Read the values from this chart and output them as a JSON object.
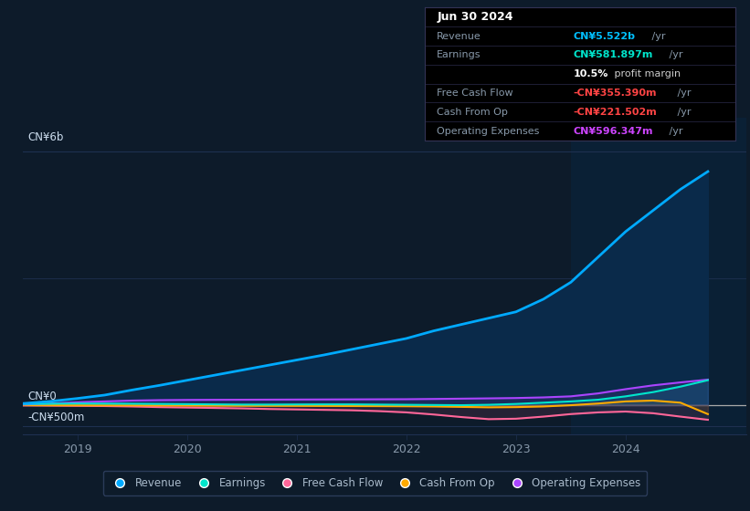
{
  "bg_color": "#0d1b2a",
  "plot_bg_color": "#0d1b2a",
  "title": "Jun 30 2024",
  "yticks": [
    "CN¥6b",
    "CN¥0",
    "-CN¥500m"
  ],
  "ytick_values": [
    6000,
    0,
    -500
  ],
  "xticks": [
    "2019",
    "2020",
    "2021",
    "2022",
    "2023",
    "2024"
  ],
  "ylim": [
    -700,
    6800
  ],
  "xlim": [
    2018.5,
    2025.1
  ],
  "highlight_x_start": 2023.5,
  "highlight_x_end": 2025.1,
  "series": {
    "Revenue": {
      "color": "#00aaff",
      "fill_color": "#0a2a4a",
      "x": [
        2018.5,
        2018.75,
        2019.0,
        2019.25,
        2019.5,
        2019.75,
        2020.0,
        2020.25,
        2020.5,
        2020.75,
        2021.0,
        2021.25,
        2021.5,
        2021.75,
        2022.0,
        2022.25,
        2022.5,
        2022.75,
        2023.0,
        2023.25,
        2023.5,
        2023.75,
        2024.0,
        2024.25,
        2024.5,
        2024.75
      ],
      "y": [
        30,
        80,
        150,
        230,
        350,
        460,
        580,
        700,
        820,
        940,
        1060,
        1180,
        1310,
        1440,
        1570,
        1750,
        1900,
        2050,
        2200,
        2500,
        2900,
        3500,
        4100,
        4600,
        5100,
        5522
      ]
    },
    "Earnings": {
      "color": "#00e5cc",
      "x": [
        2018.5,
        2018.75,
        2019.0,
        2019.25,
        2019.5,
        2019.75,
        2020.0,
        2020.25,
        2020.5,
        2020.75,
        2021.0,
        2021.25,
        2021.5,
        2021.75,
        2022.0,
        2022.25,
        2022.5,
        2022.75,
        2023.0,
        2023.25,
        2023.5,
        2023.75,
        2024.0,
        2024.25,
        2024.5,
        2024.75
      ],
      "y": [
        20,
        25,
        30,
        28,
        25,
        20,
        15,
        10,
        5,
        5,
        8,
        10,
        10,
        5,
        0,
        -5,
        -10,
        0,
        20,
        50,
        80,
        120,
        200,
        300,
        430,
        582
      ]
    },
    "Free Cash Flow": {
      "color": "#ff6699",
      "x": [
        2018.5,
        2018.75,
        2019.0,
        2019.25,
        2019.5,
        2019.75,
        2020.0,
        2020.25,
        2020.5,
        2020.75,
        2021.0,
        2021.25,
        2021.5,
        2021.75,
        2022.0,
        2022.25,
        2022.5,
        2022.75,
        2023.0,
        2023.25,
        2023.5,
        2023.75,
        2024.0,
        2024.25,
        2024.5,
        2024.75
      ],
      "y": [
        -15,
        -20,
        -25,
        -30,
        -40,
        -55,
        -65,
        -75,
        -85,
        -100,
        -110,
        -120,
        -130,
        -150,
        -180,
        -230,
        -290,
        -340,
        -330,
        -280,
        -220,
        -180,
        -160,
        -200,
        -280,
        -355
      ]
    },
    "Cash From Op": {
      "color": "#ffaa00",
      "x": [
        2018.5,
        2018.75,
        2019.0,
        2019.25,
        2019.5,
        2019.75,
        2020.0,
        2020.25,
        2020.5,
        2020.75,
        2021.0,
        2021.25,
        2021.5,
        2021.75,
        2022.0,
        2022.25,
        2022.5,
        2022.75,
        2023.0,
        2023.25,
        2023.5,
        2023.75,
        2024.0,
        2024.25,
        2024.5,
        2024.75
      ],
      "y": [
        -10,
        -12,
        -14,
        -15,
        -16,
        -18,
        -20,
        -22,
        -24,
        -25,
        -26,
        -28,
        -30,
        -32,
        -35,
        -40,
        -50,
        -60,
        -55,
        -40,
        -10,
        30,
        80,
        100,
        50,
        -221
      ]
    },
    "Operating Expenses": {
      "color": "#aa44ff",
      "x": [
        2018.5,
        2018.75,
        2019.0,
        2019.25,
        2019.5,
        2019.75,
        2020.0,
        2020.25,
        2020.5,
        2020.75,
        2021.0,
        2021.25,
        2021.5,
        2021.75,
        2022.0,
        2022.25,
        2022.5,
        2022.75,
        2023.0,
        2023.25,
        2023.5,
        2023.75,
        2024.0,
        2024.25,
        2024.5,
        2024.75
      ],
      "y": [
        5,
        30,
        60,
        80,
        100,
        110,
        115,
        118,
        120,
        122,
        124,
        126,
        128,
        130,
        132,
        138,
        145,
        152,
        160,
        175,
        200,
        270,
        370,
        460,
        530,
        596
      ]
    }
  },
  "legend": [
    {
      "label": "Revenue",
      "color": "#00aaff"
    },
    {
      "label": "Earnings",
      "color": "#00e5cc"
    },
    {
      "label": "Free Cash Flow",
      "color": "#ff6699"
    },
    {
      "label": "Cash From Op",
      "color": "#ffaa00"
    },
    {
      "label": "Operating Expenses",
      "color": "#aa44ff"
    }
  ],
  "grid_color": "#1e3050",
  "text_color": "#8899aa",
  "zero_line_color": "#aaaaaa",
  "table_rows": [
    {
      "label": "Jun 30 2024",
      "value": "",
      "value_color": "#ffffff",
      "header": true
    },
    {
      "label": "Revenue",
      "value": "CN¥5.522b /yr",
      "value_color": "#00bfff",
      "header": false
    },
    {
      "label": "Earnings",
      "value": "CN¥581.897m /yr",
      "value_color": "#00e5cc",
      "header": false
    },
    {
      "label": "",
      "value": "10.5% profit margin",
      "value_color": "#cccccc",
      "header": false
    },
    {
      "label": "Free Cash Flow",
      "value": "-CN¥355.390m /yr",
      "value_color": "#ff4444",
      "header": false
    },
    {
      "label": "Cash From Op",
      "value": "-CN¥221.502m /yr",
      "value_color": "#ff4444",
      "header": false
    },
    {
      "label": "Operating Expenses",
      "value": "CN¥596.347m /yr",
      "value_color": "#cc44ff",
      "header": false
    }
  ]
}
